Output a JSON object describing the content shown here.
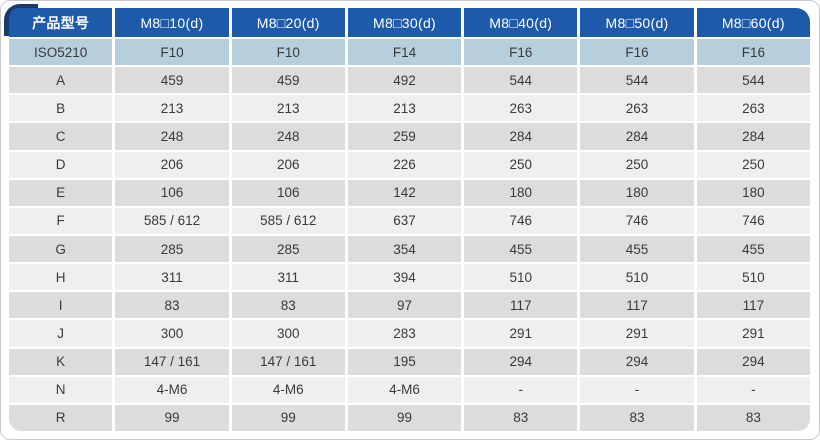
{
  "colors": {
    "header_bg": "#1d5aa9",
    "header_text": "#ffffff",
    "corner_accent": "#1a3a6d",
    "iso_row_bg": "#b7cedd",
    "row_dark_bg": "#dcdcdc",
    "row_light_bg": "#efefef",
    "cell_text": "#3a3a3a",
    "page_bg": "#ffffff"
  },
  "table": {
    "columns": [
      "产品型号",
      "M8□10(d)",
      "M8□20(d)",
      "M8□30(d)",
      "M8□40(d)",
      "M8□50(d)",
      "M8□60(d)"
    ],
    "rows": [
      {
        "label": "ISO5210",
        "values": [
          "F10",
          "F10",
          "F14",
          "F16",
          "F16",
          "F16"
        ],
        "highlight": true
      },
      {
        "label": "A",
        "values": [
          "459",
          "459",
          "492",
          "544",
          "544",
          "544"
        ]
      },
      {
        "label": "B",
        "values": [
          "213",
          "213",
          "213",
          "263",
          "263",
          "263"
        ]
      },
      {
        "label": "C",
        "values": [
          "248",
          "248",
          "259",
          "284",
          "284",
          "284"
        ]
      },
      {
        "label": "D",
        "values": [
          "206",
          "206",
          "226",
          "250",
          "250",
          "250"
        ]
      },
      {
        "label": "E",
        "values": [
          "106",
          "106",
          "142",
          "180",
          "180",
          "180"
        ]
      },
      {
        "label": "F",
        "values": [
          "585 / 612",
          "585 / 612",
          "637",
          "746",
          "746",
          "746"
        ]
      },
      {
        "label": "G",
        "values": [
          "285",
          "285",
          "354",
          "455",
          "455",
          "455"
        ]
      },
      {
        "label": "H",
        "values": [
          "311",
          "311",
          "394",
          "510",
          "510",
          "510"
        ]
      },
      {
        "label": "I",
        "values": [
          "83",
          "83",
          "97",
          "117",
          "117",
          "117"
        ]
      },
      {
        "label": "J",
        "values": [
          "300",
          "300",
          "283",
          "291",
          "291",
          "291"
        ]
      },
      {
        "label": "K",
        "values": [
          "147 / 161",
          "147 / 161",
          "195",
          "294",
          "294",
          "294"
        ]
      },
      {
        "label": "N",
        "values": [
          "4-M6",
          "4-M6",
          "4-M6",
          "-",
          "-",
          "-"
        ]
      },
      {
        "label": "R",
        "values": [
          "99",
          "99",
          "99",
          "83",
          "83",
          "83"
        ]
      }
    ]
  }
}
